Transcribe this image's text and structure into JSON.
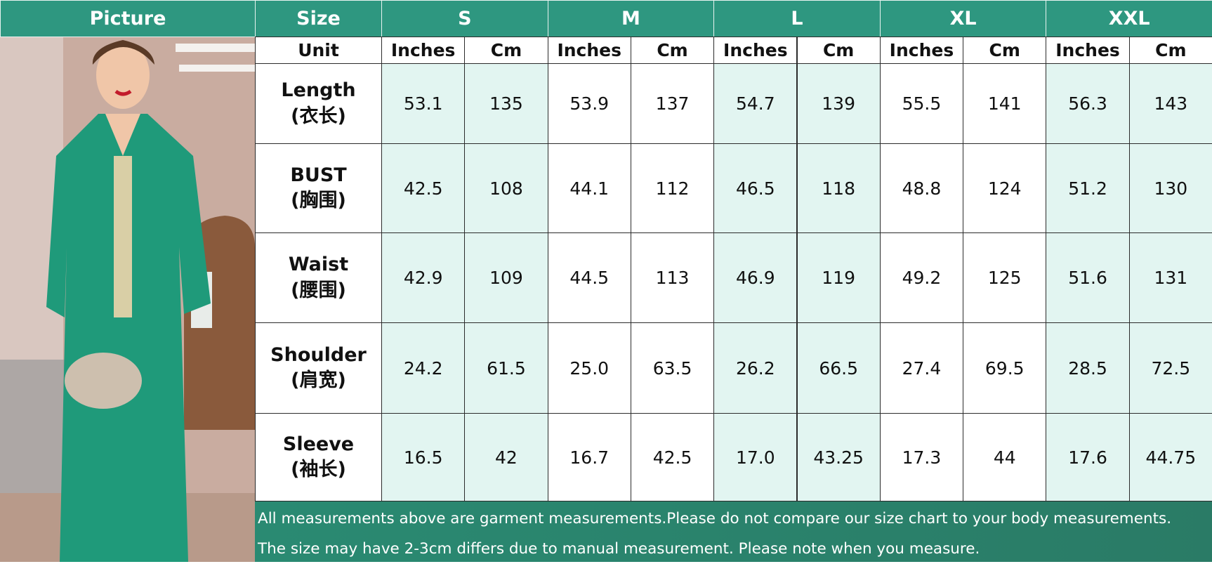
{
  "header": {
    "picture_label": "Picture",
    "size_label": "Size",
    "sizes": [
      "S",
      "M",
      "L",
      "XL",
      "XXL"
    ]
  },
  "unit_row": {
    "label": "Unit",
    "units": [
      "Inches",
      "Cm",
      "Inches",
      "Cm",
      "Inches",
      "Cm",
      "Inches",
      "Cm",
      "Inches",
      "Cm"
    ]
  },
  "rows": [
    {
      "label": "Length",
      "sublabel": "(衣长)",
      "values": [
        "53.1",
        "135",
        "53.9",
        "137",
        "54.7",
        "139",
        "55.5",
        "141",
        "56.3",
        "143"
      ]
    },
    {
      "label": "BUST",
      "sublabel": "(胸围)",
      "values": [
        "42.5",
        "108",
        "44.1",
        "112",
        "46.5",
        "118",
        "48.8",
        "124",
        "51.2",
        "130"
      ]
    },
    {
      "label": "Waist",
      "sublabel": "(腰围)",
      "values": [
        "42.9",
        "109",
        "44.5",
        "113",
        "46.9",
        "119",
        "49.2",
        "125",
        "51.6",
        "131"
      ]
    },
    {
      "label": "Shoulder",
      "sublabel": "(肩宽)",
      "values": [
        "24.2",
        "61.5",
        "25.0",
        "63.5",
        "26.2",
        "66.5",
        "27.4",
        "69.5",
        "28.5",
        "72.5"
      ]
    },
    {
      "label": "Sleeve",
      "sublabel": "(袖长)",
      "values": [
        "16.5",
        "42",
        "16.7",
        "42.5",
        "17.0",
        "43.25",
        "17.3",
        "44",
        "17.6",
        "44.75"
      ]
    }
  ],
  "footer": [
    "All measurements above are garment measurements.Please do not compare our size chart to your body measurements.",
    "The size may have 2-3cm differs due to manual measurement. Please note when you measure."
  ]
}
